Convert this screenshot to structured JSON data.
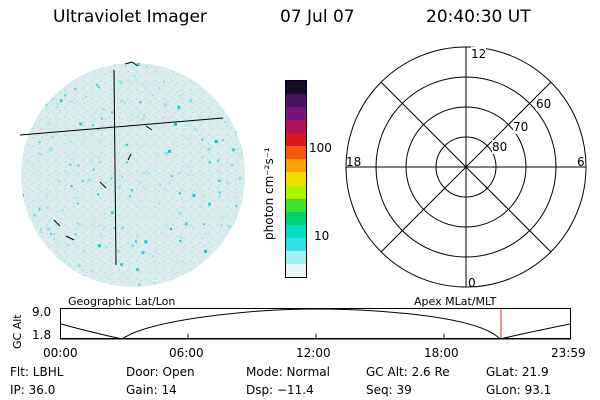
{
  "header": {
    "title": "Ultraviolet Imager",
    "date": "07 Jul 07",
    "time": "20:40:30 UT"
  },
  "colorbar": {
    "label": "photon cm⁻²s⁻¹",
    "ticks": [
      "100",
      "10"
    ],
    "colors": [
      "#1a0a26",
      "#4a1060",
      "#7a1080",
      "#b0105a",
      "#d81818",
      "#f05a10",
      "#ffa000",
      "#f0e000",
      "#b0f000",
      "#40e030",
      "#00d070",
      "#00e0c0",
      "#30e0e8",
      "#a0f0f0",
      "#e8f8f8"
    ]
  },
  "polar": {
    "labels": {
      "top": "12",
      "bottom": "0",
      "left": "18",
      "right": "6"
    },
    "rings": [
      "60",
      "70",
      "80"
    ]
  },
  "timeline": {
    "left_label": "Geographic Lat/Lon",
    "right_label": "Apex MLat/MLT",
    "axis_title": "GC Alt",
    "y_top": "9.0",
    "y_bottom": "1.8",
    "x_ticks": [
      "00:00",
      "06:00",
      "12:00",
      "18:00",
      "23:59"
    ],
    "marker_color": "#c03020"
  },
  "status": {
    "row1": {
      "flt": "Flt: LBHL",
      "door": "Door: Open",
      "mode": "Mode: Normal",
      "gcalt": "GC Alt: 2.6 Re",
      "glat": "GLat:  21.9"
    },
    "row2": {
      "ip": "IP: 36.0",
      "gain": "Gain: 14",
      "dsp": "Dsp:  −11.4",
      "seq": "Seq: 39",
      "glon": "GLon:  93.1"
    }
  }
}
